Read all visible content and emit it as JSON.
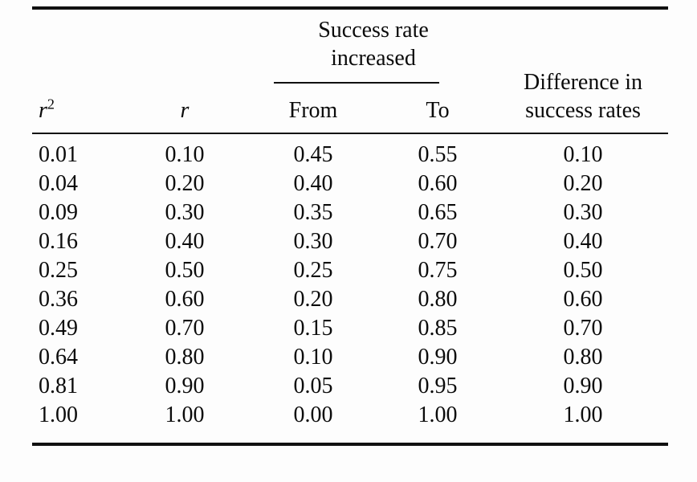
{
  "page": {
    "background": "#fdfdfd",
    "text_color": "#0b0b0b",
    "rule_color": "#101010"
  },
  "table": {
    "spanner": {
      "line1": "Success rate",
      "line2": "increased"
    },
    "headers": {
      "r_squared_base": "r",
      "r_squared_exp": "2",
      "r": "r",
      "from": "From",
      "to": "To",
      "difference_line1": "Difference in",
      "difference_line2": "success rates"
    },
    "rows": [
      [
        "0.01",
        "0.10",
        "0.45",
        "0.55",
        "0.10"
      ],
      [
        "0.04",
        "0.20",
        "0.40",
        "0.60",
        "0.20"
      ],
      [
        "0.09",
        "0.30",
        "0.35",
        "0.65",
        "0.30"
      ],
      [
        "0.16",
        "0.40",
        "0.30",
        "0.70",
        "0.40"
      ],
      [
        "0.25",
        "0.50",
        "0.25",
        "0.75",
        "0.50"
      ],
      [
        "0.36",
        "0.60",
        "0.20",
        "0.80",
        "0.60"
      ],
      [
        "0.49",
        "0.70",
        "0.15",
        "0.85",
        "0.70"
      ],
      [
        "0.64",
        "0.80",
        "0.10",
        "0.90",
        "0.80"
      ],
      [
        "0.81",
        "0.90",
        "0.05",
        "0.95",
        "0.90"
      ],
      [
        "1.00",
        "1.00",
        "0.00",
        "1.00",
        "1.00"
      ]
    ]
  }
}
